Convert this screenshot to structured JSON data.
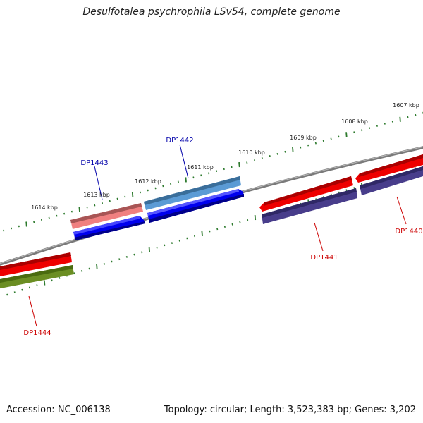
{
  "title": "Desulfotalea psychrophila LSv54, complete genome",
  "accession": "Accession: NC_006138",
  "topology": "Topology: circular; Length: 3,523,383 bp; Genes: 3,202",
  "colors": {
    "forward_label": "#0000aa",
    "reverse_label": "#cc0000",
    "tick": "#2d7a2d",
    "backbone": "#7a7a7a"
  },
  "kbp_labels": [
    "1614 kbp",
    "1613 kbp",
    "1612 kbp",
    "1611 kbp",
    "1610 kbp",
    "1609 kbp",
    "1608 kbp",
    "1607 kbp"
  ],
  "genes": [
    {
      "name": "DP1444",
      "strand": "reverse"
    },
    {
      "name": "DP1443",
      "strand": "forward"
    },
    {
      "name": "DP1442",
      "strand": "forward"
    },
    {
      "name": "DP1441",
      "strand": "reverse"
    },
    {
      "name": "DP1440",
      "strand": "reverse"
    }
  ]
}
